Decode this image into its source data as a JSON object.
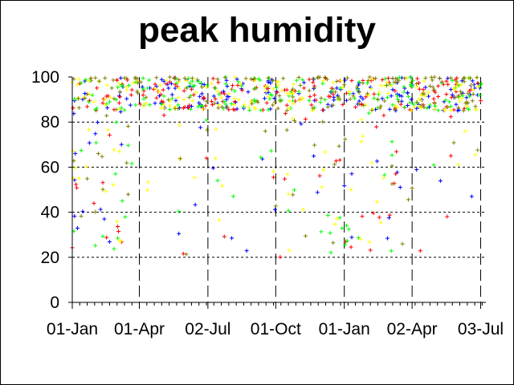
{
  "chart_data": {
    "type": "scatter",
    "title": "peak humidity",
    "xlabel": "",
    "ylabel": "",
    "x_ticks": [
      "01-Jan",
      "01-Apr",
      "02-Jul",
      "01-Oct",
      "01-Jan",
      "02-Apr",
      "03-Jul"
    ],
    "x_tick_days": [
      0,
      90,
      182,
      273,
      365,
      456,
      548
    ],
    "y_ticks": [
      0,
      20,
      40,
      60,
      80,
      100
    ],
    "ylim": [
      0,
      100
    ],
    "xlim_days": [
      0,
      555
    ],
    "grid": "horizontal dashed at 20,40,60,80; vertical dashed at x ticks",
    "legend": "none",
    "marker": "+",
    "series_colors": [
      "#0000ff",
      "#ff0000",
      "#00ff00",
      "#ffff00",
      "#808000"
    ],
    "approx_points_per_series": 180,
    "typical_peak_humidity_range": [
      85,
      100
    ],
    "notable_low_periods": [
      {
        "from": "01-Jan",
        "to": "01-Apr",
        "min_value": 23
      },
      {
        "from": "01-Oct",
        "to": "01-Jan",
        "min_value": 20
      },
      {
        "from": "01-Jan",
        "to": "02-Apr",
        "min_value": 23
      }
    ]
  }
}
